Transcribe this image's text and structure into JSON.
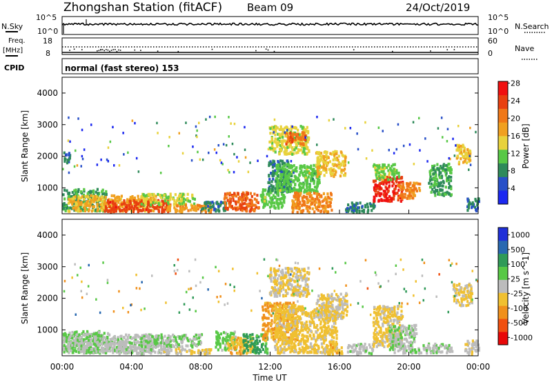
{
  "header": {
    "station": "Zhongshan Station (fitACF)",
    "beam": "Beam 09",
    "date": "24/Oct/2019"
  },
  "noise_panel": {
    "left_label": "N.Sky",
    "right_label": "N.Search",
    "left_ticks": [
      "10^5",
      "10^0"
    ],
    "right_ticks": [
      "10^5",
      "10^0"
    ]
  },
  "freq_panel": {
    "left_label": "Freq.",
    "left_unit": "[MHz]",
    "right_label": "Nave",
    "left_ticks": [
      "18",
      "8"
    ],
    "right_ticks": [
      "60",
      "0"
    ],
    "cpid_label": "CPID",
    "cpid_text": "normal (fast stereo) 153"
  },
  "colors": {
    "power": [
      "#1c28f0",
      "#2850c8",
      "#2e8a5a",
      "#58c846",
      "#e8d23c",
      "#f0a020",
      "#f07818",
      "#e84010",
      "#f01010"
    ],
    "velocity": [
      "#e80808",
      "#f05010",
      "#f0901c",
      "#f0c030",
      "#bcbcbc",
      "#58c846",
      "#309a58",
      "#2868b0",
      "#2030d8"
    ]
  },
  "chart_data": [
    {
      "type": "heatmap",
      "name": "power",
      "ylabel": "Slant Range [km]",
      "ylim": [
        180,
        4500
      ],
      "yticks": [
        "1000",
        "2000",
        "3000",
        "4000"
      ],
      "xlim": [
        0,
        24
      ],
      "colorbar": {
        "label": "Power [dB]",
        "ticks": [
          "4",
          "8",
          "12",
          "16",
          "20",
          "24",
          "28"
        ],
        "range": [
          0,
          31
        ]
      },
      "blobs": [
        {
          "t0": 0.0,
          "t1": 0.4,
          "r0": 1800,
          "r1": 2200,
          "v": 7
        },
        {
          "t0": 0.0,
          "t1": 2.5,
          "r0": 300,
          "r1": 1000,
          "v": 10
        },
        {
          "t0": 0.3,
          "t1": 5.5,
          "r0": 300,
          "r1": 800,
          "v": 18
        },
        {
          "t0": 2.4,
          "t1": 6.2,
          "r0": 250,
          "r1": 650,
          "v": 26
        },
        {
          "t0": 4.5,
          "t1": 7.6,
          "r0": 500,
          "r1": 850,
          "v": 14
        },
        {
          "t0": 5.8,
          "t1": 8.6,
          "r0": 220,
          "r1": 500,
          "v": 20
        },
        {
          "t0": 8.0,
          "t1": 9.4,
          "r0": 300,
          "r1": 600,
          "v": 8
        },
        {
          "t0": 9.3,
          "t1": 11.3,
          "r0": 300,
          "r1": 900,
          "v": 24
        },
        {
          "t0": 11.4,
          "t1": 12.8,
          "r0": 400,
          "r1": 1000,
          "v": 12
        },
        {
          "t0": 11.8,
          "t1": 13.2,
          "r0": 900,
          "r1": 1900,
          "v": 8
        },
        {
          "t0": 12.3,
          "t1": 14.8,
          "r0": 900,
          "r1": 1800,
          "v": 12
        },
        {
          "t0": 13.2,
          "t1": 15.5,
          "r0": 250,
          "r1": 900,
          "v": 21
        },
        {
          "t0": 14.6,
          "t1": 16.3,
          "r0": 1400,
          "r1": 2200,
          "v": 17
        },
        {
          "t0": 11.9,
          "t1": 14.2,
          "r0": 2100,
          "r1": 3000,
          "v": 15
        },
        {
          "t0": 12.8,
          "t1": 14.0,
          "r0": 2400,
          "r1": 2800,
          "v": 23
        },
        {
          "t0": 16.3,
          "t1": 18.0,
          "r0": 250,
          "r1": 600,
          "v": 8
        },
        {
          "t0": 17.9,
          "t1": 19.6,
          "r0": 600,
          "r1": 1400,
          "v": 28
        },
        {
          "t0": 17.9,
          "t1": 19.4,
          "r0": 1300,
          "r1": 1800,
          "v": 13
        },
        {
          "t0": 19.3,
          "t1": 20.6,
          "r0": 700,
          "r1": 1200,
          "v": 21
        },
        {
          "t0": 21.1,
          "t1": 22.4,
          "r0": 800,
          "r1": 1800,
          "v": 10
        },
        {
          "t0": 22.7,
          "t1": 23.5,
          "r0": 1800,
          "r1": 2400,
          "v": 17
        },
        {
          "t0": 23.3,
          "t1": 24.0,
          "r0": 250,
          "r1": 700,
          "v": 7
        }
      ]
    },
    {
      "type": "heatmap",
      "name": "velocity",
      "ylabel": "Slant Range [km]",
      "xlabel": "Time UT",
      "ylim": [
        180,
        4500
      ],
      "yticks": [
        "1000",
        "2000",
        "3000",
        "4000"
      ],
      "xticks": [
        "00:00",
        "04:00",
        "08:00",
        "12:00",
        "16:00",
        "20:00",
        "00:00"
      ],
      "xlim": [
        0,
        24
      ],
      "colorbar": {
        "label": "Velocity [m s^-1]",
        "ticks": [
          "1000",
          "500",
          "100",
          "25",
          "-25",
          "-100",
          "-500",
          "-1000"
        ],
        "range": [
          -1200,
          1200
        ]
      },
      "blobs": [
        {
          "t0": 0.0,
          "t1": 2.6,
          "r0": 300,
          "r1": 1000,
          "v": 200
        },
        {
          "t0": 0.3,
          "t1": 5.5,
          "r0": 350,
          "r1": 900,
          "v": 60
        },
        {
          "t0": 2.4,
          "t1": 6.2,
          "r0": 250,
          "r1": 650,
          "v": 30
        },
        {
          "t0": 4.5,
          "t1": 8.0,
          "r0": 500,
          "r1": 900,
          "v": 140
        },
        {
          "t0": 5.8,
          "t1": 8.6,
          "r0": 220,
          "r1": 450,
          "v": -130
        },
        {
          "t0": 8.8,
          "t1": 10.0,
          "r0": 400,
          "r1": 1000,
          "v": 250
        },
        {
          "t0": 9.5,
          "t1": 11.0,
          "r0": 280,
          "r1": 800,
          "v": -300
        },
        {
          "t0": 10.4,
          "t1": 11.8,
          "r0": 300,
          "r1": 900,
          "v": 500
        },
        {
          "t0": 11.5,
          "t1": 13.6,
          "r0": 700,
          "r1": 1900,
          "v": -450
        },
        {
          "t0": 12.2,
          "t1": 15.8,
          "r0": 300,
          "r1": 1800,
          "v": -220
        },
        {
          "t0": 14.6,
          "t1": 16.4,
          "r0": 1400,
          "r1": 2200,
          "v": -120
        },
        {
          "t0": 11.9,
          "t1": 14.2,
          "r0": 2100,
          "r1": 3000,
          "v": -150
        },
        {
          "t0": 15.2,
          "t1": 16.1,
          "r0": 250,
          "r1": 600,
          "v": -300
        },
        {
          "t0": 16.4,
          "t1": 18.0,
          "r0": 250,
          "r1": 600,
          "v": 20
        },
        {
          "t0": 17.9,
          "t1": 19.6,
          "r0": 500,
          "r1": 1800,
          "v": -180
        },
        {
          "t0": 18.8,
          "t1": 20.4,
          "r0": 300,
          "r1": 1200,
          "v": 120
        },
        {
          "t0": 20.5,
          "t1": 22.5,
          "r0": 300,
          "r1": 600,
          "v": 80
        },
        {
          "t0": 22.5,
          "t1": 23.6,
          "r0": 1800,
          "r1": 2500,
          "v": -160
        },
        {
          "t0": 23.2,
          "t1": 24.0,
          "r0": 250,
          "r1": 700,
          "v": -60
        }
      ]
    }
  ]
}
